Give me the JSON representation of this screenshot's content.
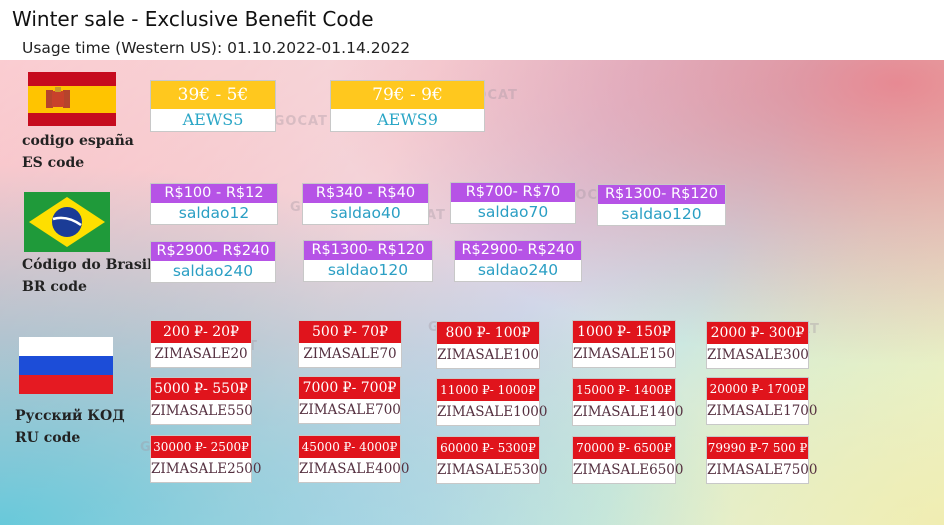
{
  "header": {
    "title": "Winter sale - Exclusive Benefit Code",
    "subtitle": "Usage time (Western US): 01.10.2022-01.14.2022"
  },
  "colors": {
    "spain_yellow": "#ffc81e",
    "brazil_purple": "#b653e6",
    "russia_red": "#e0141c",
    "code_blue": "#2aa6c6"
  },
  "spain": {
    "label_1": "codigo españa",
    "label_2": "ES code",
    "flag_icon": "spain-flag-icon",
    "codes": [
      {
        "discount": "39€ - 5€",
        "code": "AEWS5"
      },
      {
        "discount": "79€ - 9€",
        "code": "AEWS9"
      }
    ]
  },
  "brazil": {
    "label_1": "Código do Brasil",
    "label_2": "BR code",
    "flag_icon": "brazil-flag-icon",
    "codes": [
      {
        "discount": "R$100 - R$12",
        "code": "saldao12"
      },
      {
        "discount": "R$340 - R$40",
        "code": "saldao40"
      },
      {
        "discount": "R$700- R$70",
        "code": "saldao70"
      },
      {
        "discount": "R$1300- R$120",
        "code": "saldao120"
      },
      {
        "discount": "R$2900- R$240",
        "code": "saldao240"
      },
      {
        "discount": "R$1300- R$120",
        "code": "saldao120"
      },
      {
        "discount": "R$2900- R$240",
        "code": "saldao240"
      }
    ]
  },
  "russia": {
    "label_1": "Русский КОД",
    "label_2": "RU code",
    "flag_icon": "russia-flag-icon",
    "codes": [
      {
        "discount": "200 ₽- 20₽",
        "code": "ZIMASALE20"
      },
      {
        "discount": "500 ₽- 70₽",
        "code": "ZIMASALE70"
      },
      {
        "discount": "800 ₽- 100₽",
        "code": "ZIMASALE100"
      },
      {
        "discount": "1000 ₽- 150₽",
        "code": "ZIMASALE150"
      },
      {
        "discount": "2000 ₽- 300₽",
        "code": "ZIMASALE300"
      },
      {
        "discount": "5000 ₽- 550₽",
        "code": "ZIMASALE550"
      },
      {
        "discount": "7000 ₽- 700₽",
        "code": "ZIMASALE700"
      },
      {
        "discount": "11000 ₽- 1000₽",
        "code": "ZIMASALE1000"
      },
      {
        "discount": "15000 ₽- 1400₽",
        "code": "ZIMASALE1400"
      },
      {
        "discount": "20000 ₽- 1700₽",
        "code": "ZIMASALE1700"
      },
      {
        "discount": "30000 ₽- 2500₽",
        "code": "ZIMASALE2500"
      },
      {
        "discount": "45000 ₽- 4000₽",
        "code": "ZIMASALE4000"
      },
      {
        "discount": "60000 ₽- 5300₽",
        "code": "ZIMASALE5300"
      },
      {
        "discount": "70000 ₽- 6500₽",
        "code": "ZIMASALE6500"
      },
      {
        "discount": "79990 ₽-7 500 ₽",
        "code": "ZIMASALE7500"
      }
    ]
  },
  "watermark": "GOGOCAT"
}
